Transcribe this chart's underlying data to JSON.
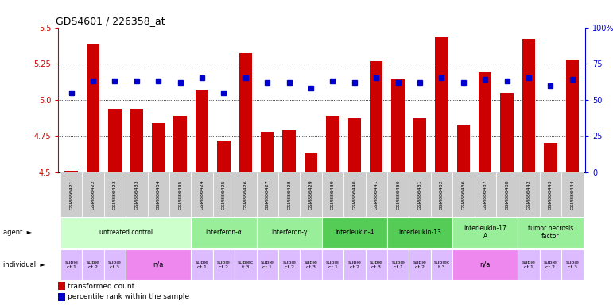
{
  "title": "GDS4601 / 226358_at",
  "samples": [
    "GSM886421",
    "GSM886422",
    "GSM886423",
    "GSM886433",
    "GSM886434",
    "GSM886435",
    "GSM886424",
    "GSM886425",
    "GSM886426",
    "GSM886427",
    "GSM886428",
    "GSM886429",
    "GSM886439",
    "GSM886440",
    "GSM886441",
    "GSM886430",
    "GSM886431",
    "GSM886432",
    "GSM886436",
    "GSM886437",
    "GSM886438",
    "GSM886442",
    "GSM886443",
    "GSM886444"
  ],
  "bar_values": [
    4.51,
    5.38,
    4.94,
    4.94,
    4.84,
    4.89,
    5.07,
    4.72,
    5.32,
    4.78,
    4.79,
    4.63,
    4.89,
    4.87,
    5.27,
    5.14,
    4.87,
    5.43,
    4.83,
    5.19,
    5.05,
    5.42,
    4.7,
    5.28
  ],
  "dot_percentile": [
    55,
    63,
    63,
    63,
    63,
    62,
    65,
    55,
    65,
    62,
    62,
    58,
    63,
    62,
    65,
    62,
    62,
    65,
    62,
    64,
    63,
    65,
    60,
    64
  ],
  "ylim_left": [
    4.5,
    5.5
  ],
  "yticks_left": [
    4.5,
    4.75,
    5.0,
    5.25,
    5.5
  ],
  "yticks_right": [
    0,
    25,
    50,
    75,
    100
  ],
  "bar_color": "#cc0000",
  "dot_color": "#0000cc",
  "agent_groups": [
    {
      "label": "untreated control",
      "start": 0,
      "end": 5,
      "color": "#ccffcc"
    },
    {
      "label": "interferon-α",
      "start": 6,
      "end": 8,
      "color": "#99ee99"
    },
    {
      "label": "interferon-γ",
      "start": 9,
      "end": 11,
      "color": "#99ee99"
    },
    {
      "label": "interleukin-4",
      "start": 12,
      "end": 14,
      "color": "#55cc55"
    },
    {
      "label": "interleukin-13",
      "start": 15,
      "end": 17,
      "color": "#55cc55"
    },
    {
      "label": "interleukin-17\nA",
      "start": 18,
      "end": 20,
      "color": "#99ee99"
    },
    {
      "label": "tumor necrosis\nfactor",
      "start": 21,
      "end": 23,
      "color": "#99ee99"
    }
  ],
  "individual_groups": [
    {
      "label": "subje\nct 1",
      "start": 0,
      "end": 0,
      "color": "#ddbbff"
    },
    {
      "label": "subje\nct 2",
      "start": 1,
      "end": 1,
      "color": "#ddbbff"
    },
    {
      "label": "subje\nct 3",
      "start": 2,
      "end": 2,
      "color": "#ddbbff"
    },
    {
      "label": "n/a",
      "start": 3,
      "end": 5,
      "color": "#ee88ee"
    },
    {
      "label": "subje\nct 1",
      "start": 6,
      "end": 6,
      "color": "#ddbbff"
    },
    {
      "label": "subje\nct 2",
      "start": 7,
      "end": 7,
      "color": "#ddbbff"
    },
    {
      "label": "subjec\nt 3",
      "start": 8,
      "end": 8,
      "color": "#ddbbff"
    },
    {
      "label": "subje\nct 1",
      "start": 9,
      "end": 9,
      "color": "#ddbbff"
    },
    {
      "label": "subje\nct 2",
      "start": 10,
      "end": 10,
      "color": "#ddbbff"
    },
    {
      "label": "subje\nct 3",
      "start": 11,
      "end": 11,
      "color": "#ddbbff"
    },
    {
      "label": "subje\nct 1",
      "start": 12,
      "end": 12,
      "color": "#ddbbff"
    },
    {
      "label": "subje\nct 2",
      "start": 13,
      "end": 13,
      "color": "#ddbbff"
    },
    {
      "label": "subje\nct 3",
      "start": 14,
      "end": 14,
      "color": "#ddbbff"
    },
    {
      "label": "subje\nct 1",
      "start": 15,
      "end": 15,
      "color": "#ddbbff"
    },
    {
      "label": "subje\nct 2",
      "start": 16,
      "end": 16,
      "color": "#ddbbff"
    },
    {
      "label": "subjec\nt 3",
      "start": 17,
      "end": 17,
      "color": "#ddbbff"
    },
    {
      "label": "n/a",
      "start": 18,
      "end": 20,
      "color": "#ee88ee"
    },
    {
      "label": "subje\nct 1",
      "start": 21,
      "end": 21,
      "color": "#ddbbff"
    },
    {
      "label": "subje\nct 2",
      "start": 22,
      "end": 22,
      "color": "#ddbbff"
    },
    {
      "label": "subje\nct 3",
      "start": 23,
      "end": 23,
      "color": "#ddbbff"
    }
  ],
  "background": "#ffffff",
  "sample_bg": "#cccccc",
  "legend_items": [
    {
      "color": "#cc0000",
      "label": "transformed count"
    },
    {
      "color": "#0000cc",
      "label": "percentile rank within the sample"
    }
  ]
}
